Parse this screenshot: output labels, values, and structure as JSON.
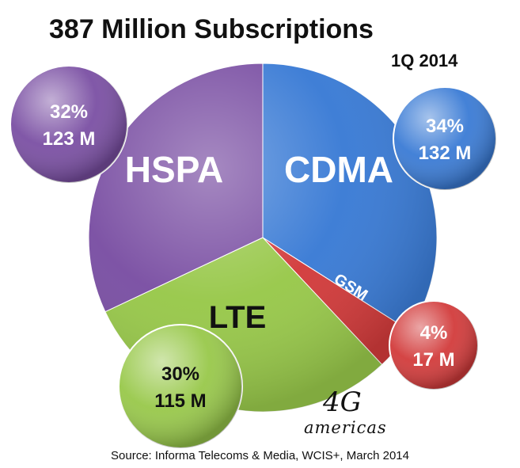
{
  "chart_data": {
    "type": "pie",
    "title": "387 Million Subscriptions",
    "subtitle": "1Q 2014",
    "source": "Source: Informa Telecoms & Media, WCIS+, March 2014",
    "slices": [
      {
        "label": "CDMA",
        "percent": 34,
        "percent_label": "34%",
        "value_label": "132 M",
        "color": "#3a7bd5"
      },
      {
        "label": "GSM",
        "percent": 4,
        "percent_label": "4%",
        "value_label": "17 M",
        "color": "#d23b3b"
      },
      {
        "label": "LTE",
        "percent": 30,
        "percent_label": "30%",
        "value_label": "115 M",
        "color": "#98c84a"
      },
      {
        "label": "HSPA",
        "percent": 32,
        "percent_label": "32%",
        "value_label": "123 M",
        "color": "#7a4fa3"
      }
    ]
  },
  "logo": {
    "mark": "4G",
    "wordmark": "americas"
  }
}
